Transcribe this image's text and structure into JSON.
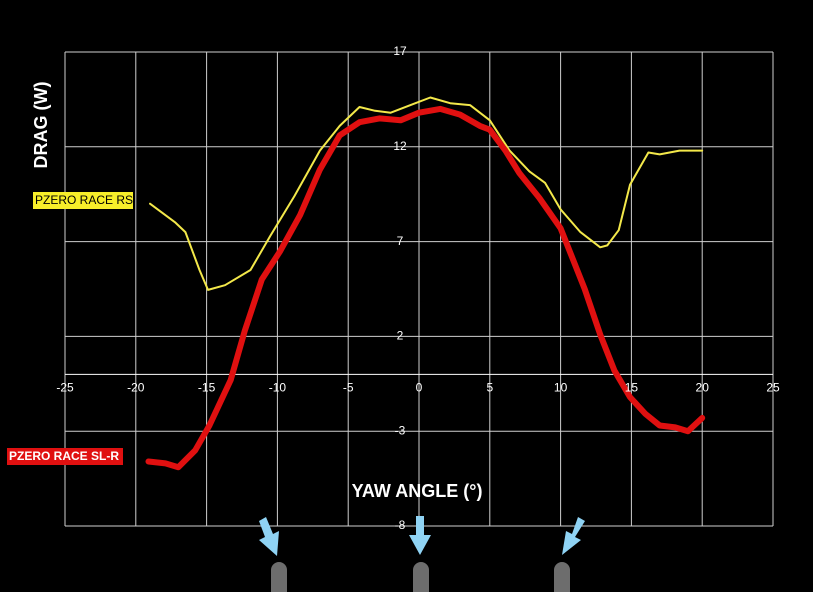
{
  "chart_data": {
    "type": "line",
    "y_label": "DRAG (W)",
    "x_label": "YAW ANGLE (°)",
    "xlim": [
      -25,
      25
    ],
    "xticks": [
      -25,
      -20,
      -15,
      -10,
      -5,
      0,
      5,
      10,
      15,
      20,
      25
    ],
    "ylim": [
      -8,
      17
    ],
    "yticks": [
      17,
      12,
      7,
      2,
      -3,
      -8
    ],
    "grid": true,
    "series": [
      {
        "name": "PZERO RACE RS",
        "color": "#f3e84a",
        "x": [
          -19,
          -17.2,
          -16.5,
          -15.5,
          -14.9,
          -13.7,
          -11.9,
          -10.5,
          -8.8,
          -7,
          -5.6,
          -4.2,
          -3.1,
          -2,
          -0.6,
          0.8,
          2.2,
          3.6,
          5,
          6.4,
          7.8,
          8.9,
          10,
          11.4,
          12.8,
          13.3,
          14.1,
          14.9,
          16.2,
          17,
          18.4,
          20
        ],
        "values": [
          9.0,
          8.0,
          7.5,
          5.5,
          4.45,
          4.7,
          5.5,
          7.3,
          9.4,
          11.8,
          13.1,
          14.1,
          13.9,
          13.8,
          14.2,
          14.6,
          14.3,
          14.2,
          13.4,
          11.8,
          10.7,
          10.1,
          8.7,
          7.5,
          6.7,
          6.8,
          7.6,
          10.0,
          11.7,
          11.6,
          11.8,
          11.8
        ]
      },
      {
        "name": "PZERO RACE SL-R",
        "color": "#e01010",
        "x": [
          -19.1,
          -17.9,
          -17,
          -15.8,
          -14.8,
          -13.3,
          -12.3,
          -11.1,
          -9.8,
          -8.4,
          -7,
          -5.6,
          -4.2,
          -2.8,
          -1.3,
          0,
          1.5,
          2.9,
          4.3,
          5,
          6.1,
          7.1,
          8.5,
          10,
          11.7,
          12.8,
          13.8,
          14.9,
          16,
          17,
          18.1,
          19,
          20
        ],
        "values": [
          -4.6,
          -4.7,
          -4.9,
          -4.0,
          -2.7,
          -0.3,
          2.3,
          5.0,
          6.5,
          8.4,
          10.8,
          12.6,
          13.3,
          13.5,
          13.4,
          13.8,
          14.0,
          13.7,
          13.1,
          12.9,
          11.8,
          10.6,
          9.3,
          7.7,
          4.5,
          2.1,
          0.2,
          -1.2,
          -2.1,
          -2.7,
          -2.8,
          -3.0,
          -2.3
        ]
      }
    ]
  }
}
